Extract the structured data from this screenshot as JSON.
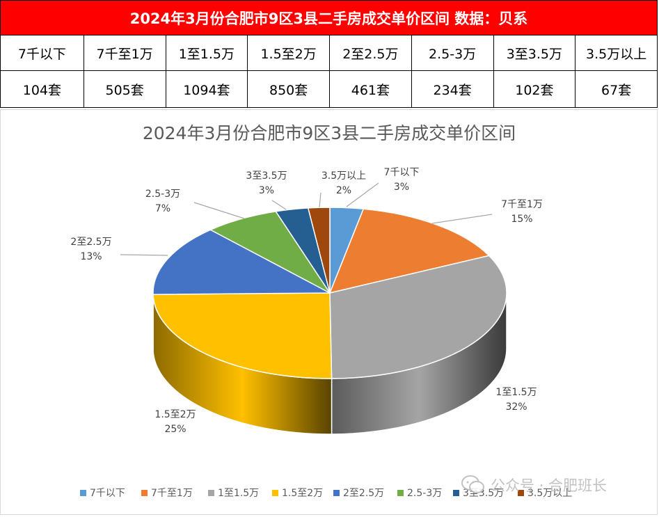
{
  "table": {
    "title": "2024年3月份合肥市9区3县二手房成交单价区间 数据：贝系",
    "header_color": "#ff0000",
    "columns": [
      "7千以下",
      "7千至1万",
      "1至1.5万",
      "1.5至2万",
      "2至2.5万",
      "2.5-3万",
      "3至3.5万",
      "3.5万以上"
    ],
    "values": [
      "104套",
      "505套",
      "1094套",
      "850套",
      "461套",
      "234套",
      "102套",
      "67套"
    ]
  },
  "chart_data": {
    "type": "pie",
    "style": "3d",
    "title": "2024年3月份合肥市9区3县二手房成交单价区间",
    "legend_position": "bottom",
    "categories": [
      "7千以下",
      "7千至1万",
      "1至1.5万",
      "1.5至2万",
      "2至2.5万",
      "2.5-3万",
      "3至3.5万",
      "3.5万以上"
    ],
    "values": [
      104,
      505,
      1094,
      850,
      461,
      234,
      102,
      67
    ],
    "percent_labels": [
      "3%",
      "15%",
      "32%",
      "25%",
      "13%",
      "7%",
      "3%",
      "2%"
    ],
    "colors": [
      "#5b9bd5",
      "#ed7d31",
      "#a5a5a5",
      "#ffc000",
      "#4472c4",
      "#70ad47",
      "#255e91",
      "#9e480e"
    ]
  },
  "watermark": {
    "text": "公众号 · 合肥班长",
    "icon": "wechat-icon"
  }
}
